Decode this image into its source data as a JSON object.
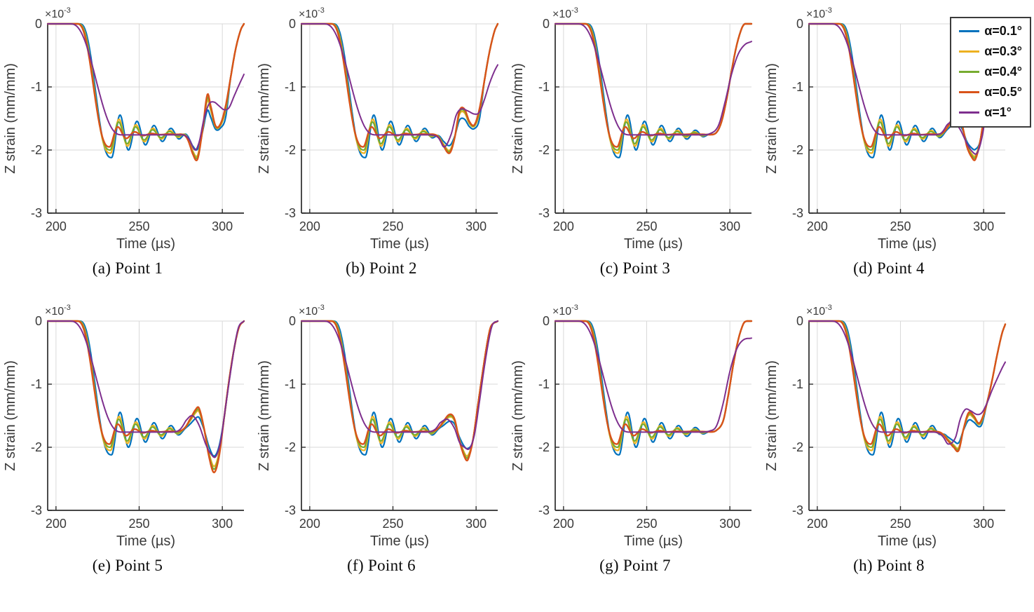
{
  "figure": {
    "description": "Z strain versus time at eight measurement points for five wedge angles",
    "panel_count": 8
  },
  "chart_data": {
    "type": "line",
    "title": "",
    "xlabel": "Time (µs)",
    "ylabel": "Z strain (mm/mm)",
    "y_scale_label": "×10⁻³",
    "y_scale_base": "×10",
    "y_scale_exp": "-3",
    "xlim": [
      195,
      313
    ],
    "ylim_e3": [
      -3,
      0
    ],
    "xticks": [
      200,
      250,
      300
    ],
    "yticks_e3": [
      0,
      -1,
      -2,
      -3
    ],
    "grid": true,
    "legend_position": "top-right-outside",
    "plateau_e3": -1.75,
    "series": [
      {
        "name": "α=0.1°",
        "color": "#0072BD",
        "drop_start": 214.0,
        "drop_end": 233.5,
        "first_min_e3": -2.12,
        "osc_tau": 26,
        "osc_period": 10.2,
        "end_scale": 0.6,
        "width": 2.2
      },
      {
        "name": "α=0.3°",
        "color": "#EDB120",
        "drop_start": 213.2,
        "drop_end": 232.9,
        "first_min_e3": -2.05,
        "osc_tau": 22,
        "osc_period": 10.2,
        "end_scale": 0.85,
        "width": 2.2
      },
      {
        "name": "α=0.4°",
        "color": "#77AC30",
        "drop_start": 212.9,
        "drop_end": 232.7,
        "first_min_e3": -2.0,
        "osc_tau": 20,
        "osc_period": 10.2,
        "end_scale": 0.92,
        "width": 2.2
      },
      {
        "name": "α=0.5°",
        "color": "#D95319",
        "drop_start": 212.5,
        "drop_end": 232.4,
        "first_min_e3": -1.95,
        "osc_tau": 9,
        "osc_period": 10.2,
        "end_scale": 1.0,
        "width": 2.4
      },
      {
        "name": "α=1°",
        "color": "#7E2F8E",
        "smooth": true,
        "drop_start": 208,
        "drop_end": 240,
        "plateau_e3": -1.76,
        "width": 2.0
      }
    ],
    "subplots": [
      {
        "caption": "(a) Point 1",
        "end": {
          "scale_until": 302,
          "main": [
            [
              274,
              -1.72
            ],
            [
              278,
              -1.82
            ],
            [
              282,
              -2.05
            ],
            [
              285,
              -2.15
            ],
            [
              288,
              -1.7
            ],
            [
              291,
              -1.12
            ],
            [
              293,
              -1.3
            ],
            [
              296,
              -1.62
            ],
            [
              299,
              -1.58
            ],
            [
              302,
              -1.3
            ],
            [
              305,
              -0.85
            ],
            [
              308,
              -0.4
            ],
            [
              311,
              -0.1
            ],
            [
              313,
              0
            ]
          ],
          "purple": [
            [
              276,
              -1.76
            ],
            [
              280,
              -1.9
            ],
            [
              283,
              -2.02
            ],
            [
              286,
              -1.88
            ],
            [
              289,
              -1.5
            ],
            [
              292,
              -1.27
            ],
            [
              295,
              -1.24
            ],
            [
              298,
              -1.3
            ],
            [
              301,
              -1.36
            ],
            [
              304,
              -1.33
            ],
            [
              307,
              -1.15
            ],
            [
              310,
              -0.97
            ],
            [
              313,
              -0.8
            ]
          ]
        }
      },
      {
        "caption": "(b) Point 2",
        "end": {
          "scale_until": 302,
          "main": [
            [
              272,
              -1.72
            ],
            [
              276,
              -1.78
            ],
            [
              280,
              -1.92
            ],
            [
              284,
              -2.05
            ],
            [
              287,
              -1.82
            ],
            [
              290,
              -1.38
            ],
            [
              293,
              -1.35
            ],
            [
              296,
              -1.55
            ],
            [
              299,
              -1.6
            ],
            [
              302,
              -1.35
            ],
            [
              305,
              -0.9
            ],
            [
              308,
              -0.45
            ],
            [
              311,
              -0.12
            ],
            [
              313,
              0
            ]
          ],
          "purple": [
            [
              272,
              -1.76
            ],
            [
              277,
              -1.82
            ],
            [
              281,
              -1.95
            ],
            [
              285,
              -1.75
            ],
            [
              288,
              -1.45
            ],
            [
              291,
              -1.35
            ],
            [
              295,
              -1.38
            ],
            [
              299,
              -1.43
            ],
            [
              302,
              -1.4
            ],
            [
              305,
              -1.2
            ],
            [
              308,
              -0.95
            ],
            [
              311,
              -0.75
            ],
            [
              313,
              -0.65
            ]
          ]
        }
      },
      {
        "caption": "(c) Point 3",
        "end": {
          "scale_until": 288,
          "main": [
            [
              282,
              -1.75
            ],
            [
              288,
              -1.76
            ],
            [
              292,
              -1.72
            ],
            [
              295,
              -1.55
            ],
            [
              298,
              -1.2
            ],
            [
              301,
              -0.75
            ],
            [
              304,
              -0.35
            ],
            [
              307,
              -0.08
            ],
            [
              309,
              0
            ],
            [
              313,
              0
            ]
          ],
          "purple": [
            [
              280,
              -1.76
            ],
            [
              288,
              -1.74
            ],
            [
              293,
              -1.62
            ],
            [
              297,
              -1.25
            ],
            [
              301,
              -0.8
            ],
            [
              305,
              -0.48
            ],
            [
              309,
              -0.33
            ],
            [
              313,
              -0.28
            ]
          ]
        }
      },
      {
        "caption": "(d) Point 4",
        "end": {
          "scale_until": 297,
          "main": [
            [
              272,
              -1.74
            ],
            [
              276,
              -1.68
            ],
            [
              280,
              -1.55
            ],
            [
              284,
              -1.47
            ],
            [
              287,
              -1.6
            ],
            [
              290,
              -1.95
            ],
            [
              293,
              -2.12
            ],
            [
              295,
              -2.15
            ],
            [
              298,
              -1.85
            ],
            [
              301,
              -1.3
            ],
            [
              304,
              -0.75
            ],
            [
              307,
              -0.3
            ],
            [
              310,
              -0.05
            ],
            [
              313,
              0
            ]
          ],
          "purple": [
            [
              270,
              -1.76
            ],
            [
              274,
              -1.72
            ],
            [
              278,
              -1.6
            ],
            [
              282,
              -1.55
            ],
            [
              286,
              -1.68
            ],
            [
              290,
              -1.9
            ],
            [
              293,
              -2.02
            ],
            [
              296,
              -2.05
            ],
            [
              299,
              -1.8
            ],
            [
              302,
              -1.3
            ],
            [
              305,
              -0.75
            ],
            [
              308,
              -0.3
            ],
            [
              311,
              -0.05
            ],
            [
              313,
              0
            ]
          ]
        }
      },
      {
        "caption": "(e) Point 5",
        "end": {
          "scale_until": 298,
          "main": [
            [
              272,
              -1.74
            ],
            [
              276,
              -1.7
            ],
            [
              280,
              -1.58
            ],
            [
              284,
              -1.4
            ],
            [
              286,
              -1.38
            ],
            [
              289,
              -1.7
            ],
            [
              292,
              -2.15
            ],
            [
              295,
              -2.4
            ],
            [
              298,
              -2.15
            ],
            [
              301,
              -1.55
            ],
            [
              304,
              -0.95
            ],
            [
              307,
              -0.45
            ],
            [
              310,
              -0.1
            ],
            [
              313,
              0
            ]
          ],
          "purple": [
            [
              270,
              -1.76
            ],
            [
              274,
              -1.7
            ],
            [
              278,
              -1.58
            ],
            [
              282,
              -1.5
            ],
            [
              286,
              -1.65
            ],
            [
              290,
              -1.95
            ],
            [
              293,
              -2.1
            ],
            [
              296,
              -2.15
            ],
            [
              299,
              -1.9
            ],
            [
              302,
              -1.35
            ],
            [
              305,
              -0.8
            ],
            [
              308,
              -0.3
            ],
            [
              310,
              -0.08
            ],
            [
              313,
              0
            ]
          ]
        }
      },
      {
        "caption": "(f) Point 6",
        "end": {
          "scale_until": 297,
          "main": [
            [
              272,
              -1.74
            ],
            [
              276,
              -1.7
            ],
            [
              280,
              -1.6
            ],
            [
              284,
              -1.48
            ],
            [
              287,
              -1.55
            ],
            [
              290,
              -1.9
            ],
            [
              293,
              -2.15
            ],
            [
              295,
              -2.2
            ],
            [
              298,
              -1.9
            ],
            [
              301,
              -1.35
            ],
            [
              304,
              -0.8
            ],
            [
              307,
              -0.3
            ],
            [
              309,
              -0.08
            ],
            [
              313,
              0
            ]
          ],
          "purple": [
            [
              270,
              -1.76
            ],
            [
              275,
              -1.7
            ],
            [
              279,
              -1.6
            ],
            [
              283,
              -1.56
            ],
            [
              287,
              -1.7
            ],
            [
              290,
              -1.92
            ],
            [
              293,
              -2.0
            ],
            [
              296,
              -2.02
            ],
            [
              299,
              -1.8
            ],
            [
              302,
              -1.28
            ],
            [
              305,
              -0.72
            ],
            [
              308,
              -0.25
            ],
            [
              310,
              -0.05
            ],
            [
              313,
              0
            ]
          ]
        }
      },
      {
        "caption": "(g) Point 7",
        "end": {
          "scale_until": 290,
          "main": [
            [
              282,
              -1.75
            ],
            [
              288,
              -1.76
            ],
            [
              292,
              -1.73
            ],
            [
              296,
              -1.58
            ],
            [
              299,
              -1.18
            ],
            [
              302,
              -0.7
            ],
            [
              305,
              -0.3
            ],
            [
              308,
              -0.05
            ],
            [
              310,
              0
            ],
            [
              313,
              0
            ]
          ],
          "purple": [
            [
              280,
              -1.76
            ],
            [
              288,
              -1.74
            ],
            [
              292,
              -1.66
            ],
            [
              296,
              -1.3
            ],
            [
              300,
              -0.8
            ],
            [
              304,
              -0.45
            ],
            [
              308,
              -0.3
            ],
            [
              313,
              -0.27
            ]
          ]
        }
      },
      {
        "caption": "(h) Point 8",
        "end": {
          "scale_until": 301,
          "main": [
            [
              270,
              -1.73
            ],
            [
              274,
              -1.78
            ],
            [
              278,
              -1.88
            ],
            [
              282,
              -2.0
            ],
            [
              285,
              -2.05
            ],
            [
              288,
              -1.7
            ],
            [
              291,
              -1.45
            ],
            [
              294,
              -1.5
            ],
            [
              297,
              -1.62
            ],
            [
              299,
              -1.55
            ],
            [
              302,
              -1.3
            ],
            [
              305,
              -0.95
            ],
            [
              308,
              -0.55
            ],
            [
              311,
              -0.2
            ],
            [
              313,
              -0.05
            ]
          ],
          "purple": [
            [
              270,
              -1.76
            ],
            [
              275,
              -1.85
            ],
            [
              279,
              -1.95
            ],
            [
              283,
              -1.85
            ],
            [
              286,
              -1.55
            ],
            [
              289,
              -1.4
            ],
            [
              292,
              -1.42
            ],
            [
              296,
              -1.48
            ],
            [
              299,
              -1.45
            ],
            [
              302,
              -1.3
            ],
            [
              305,
              -1.1
            ],
            [
              308,
              -0.92
            ],
            [
              311,
              -0.75
            ],
            [
              313,
              -0.65
            ]
          ]
        }
      }
    ]
  }
}
